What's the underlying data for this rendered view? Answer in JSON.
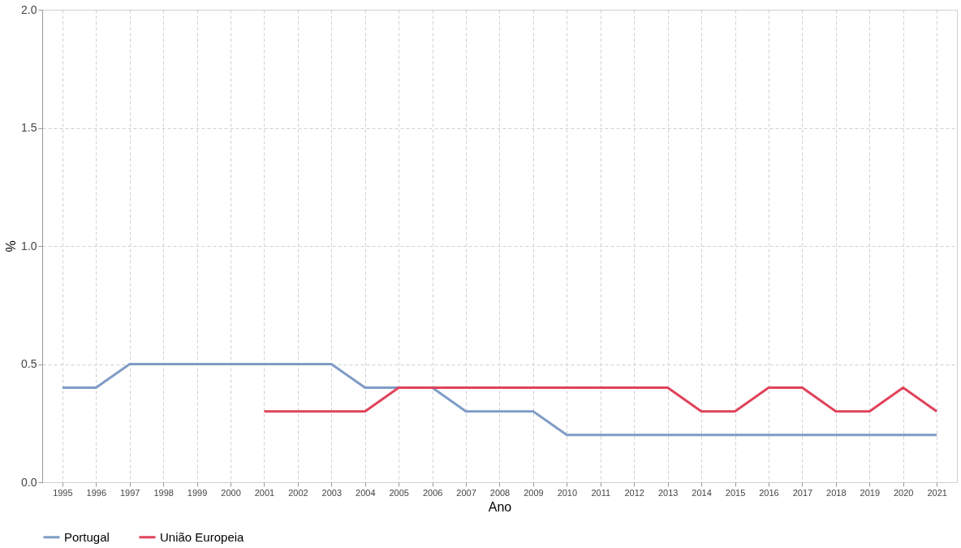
{
  "chart_data": {
    "type": "line",
    "xlabel": "Ano",
    "ylabel": "%",
    "categories": [
      "1995",
      "1996",
      "1997",
      "1998",
      "1999",
      "2000",
      "2001",
      "2002",
      "2003",
      "2004",
      "2005",
      "2006",
      "2007",
      "2008",
      "2009",
      "2010",
      "2011",
      "2012",
      "2013",
      "2014",
      "2015",
      "2016",
      "2017",
      "2018",
      "2019",
      "2020",
      "2021"
    ],
    "series": [
      {
        "name": "Portugal",
        "color": "#7f9cc6",
        "values": [
          0.4,
          0.4,
          0.5,
          0.5,
          0.5,
          0.5,
          0.5,
          0.5,
          0.5,
          0.4,
          0.4,
          0.4,
          0.3,
          0.3,
          0.3,
          0.2,
          0.2,
          0.2,
          0.2,
          0.2,
          0.2,
          0.2,
          0.2,
          0.2,
          0.2,
          0.2,
          0.2
        ]
      },
      {
        "name": "União Europeia",
        "color": "#e0435a",
        "values": [
          null,
          null,
          null,
          null,
          null,
          null,
          0.3,
          0.3,
          0.3,
          0.3,
          0.4,
          0.4,
          0.4,
          0.4,
          0.4,
          0.4,
          0.4,
          0.4,
          0.4,
          0.3,
          0.3,
          0.4,
          0.4,
          0.3,
          0.3,
          0.4,
          0.3
        ]
      }
    ],
    "ylim": [
      0,
      2
    ],
    "yticks": [
      {
        "value": 0,
        "label": "0.0"
      },
      {
        "value": 0.5,
        "label": "0.5"
      },
      {
        "value": 1,
        "label": "1.0"
      },
      {
        "value": 1.5,
        "label": "1.5"
      },
      {
        "value": 2,
        "label": "2.0"
      }
    ],
    "grid": true,
    "legend": "bottom",
    "marker": "none",
    "line_style": "solid"
  }
}
